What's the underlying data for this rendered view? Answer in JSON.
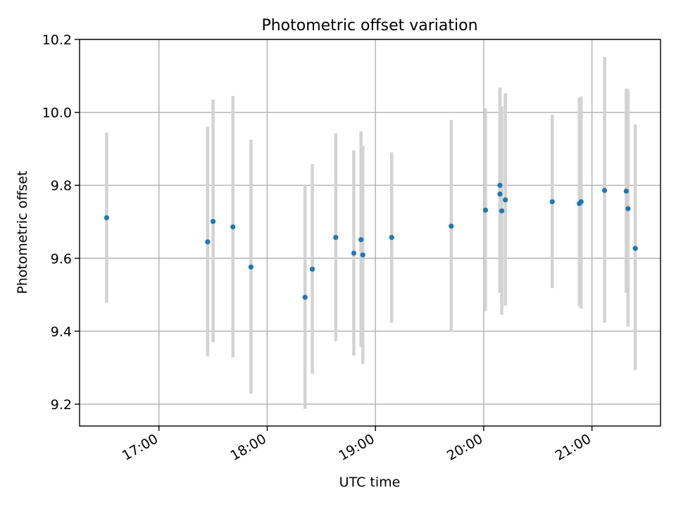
{
  "chart_data": {
    "type": "scatter",
    "title": "Photometric offset variation",
    "xlabel": "UTC time",
    "ylabel": "Photometric offset",
    "x_unit": "UTC time (hours)",
    "xlim": [
      "16:16",
      "21:38"
    ],
    "ylim": [
      9.14,
      10.2
    ],
    "x_ticks": [
      "17:00",
      "18:00",
      "19:00",
      "20:00",
      "21:00"
    ],
    "y_ticks": [
      "9.2",
      "9.4",
      "9.6",
      "9.8",
      "10.0",
      "10.2"
    ],
    "grid": true,
    "colors": {
      "point": "#1f77b4",
      "errorbar": "#d3d3d3",
      "grid": "#b0b0b0"
    },
    "points": [
      {
        "t": "16:31",
        "y": 9.711,
        "lo": 9.478,
        "hi": 9.945
      },
      {
        "t": "17:27",
        "y": 9.645,
        "lo": 9.331,
        "hi": 9.961
      },
      {
        "t": "17:30",
        "y": 9.701,
        "lo": 9.37,
        "hi": 10.035
      },
      {
        "t": "17:41",
        "y": 9.686,
        "lo": 9.328,
        "hi": 10.045
      },
      {
        "t": "17:51",
        "y": 9.576,
        "lo": 9.229,
        "hi": 9.925
      },
      {
        "t": "18:21",
        "y": 9.493,
        "lo": 9.187,
        "hi": 9.8
      },
      {
        "t": "18:25",
        "y": 9.57,
        "lo": 9.283,
        "hi": 9.858
      },
      {
        "t": "18:38",
        "y": 9.657,
        "lo": 9.373,
        "hi": 9.943
      },
      {
        "t": "18:48",
        "y": 9.614,
        "lo": 9.333,
        "hi": 9.896
      },
      {
        "t": "18:52",
        "y": 9.651,
        "lo": 9.356,
        "hi": 9.948
      },
      {
        "t": "18:53",
        "y": 9.609,
        "lo": 9.31,
        "hi": 9.908
      },
      {
        "t": "19:09",
        "y": 9.657,
        "lo": 9.423,
        "hi": 9.89
      },
      {
        "t": "19:42",
        "y": 9.688,
        "lo": 9.399,
        "hi": 9.979
      },
      {
        "t": "20:01",
        "y": 9.732,
        "lo": 9.455,
        "hi": 10.01
      },
      {
        "t": "20:09",
        "y": 9.8,
        "lo": 9.505,
        "hi": 10.068
      },
      {
        "t": "20:09",
        "y": 9.776,
        "lo": 9.505,
        "hi": 10.06
      },
      {
        "t": "20:10",
        "y": 9.73,
        "lo": 9.445,
        "hi": 10.017
      },
      {
        "t": "20:12",
        "y": 9.76,
        "lo": 9.47,
        "hi": 10.052
      },
      {
        "t": "20:38",
        "y": 9.755,
        "lo": 9.518,
        "hi": 9.993
      },
      {
        "t": "20:53",
        "y": 9.75,
        "lo": 9.468,
        "hi": 10.04
      },
      {
        "t": "20:54",
        "y": 9.755,
        "lo": 9.462,
        "hi": 10.043
      },
      {
        "t": "21:07",
        "y": 9.786,
        "lo": 9.423,
        "hi": 10.152
      },
      {
        "t": "21:19",
        "y": 9.784,
        "lo": 9.505,
        "hi": 10.065
      },
      {
        "t": "21:20",
        "y": 9.736,
        "lo": 9.413,
        "hi": 10.063
      },
      {
        "t": "21:24",
        "y": 9.627,
        "lo": 9.293,
        "hi": 9.967
      }
    ]
  }
}
